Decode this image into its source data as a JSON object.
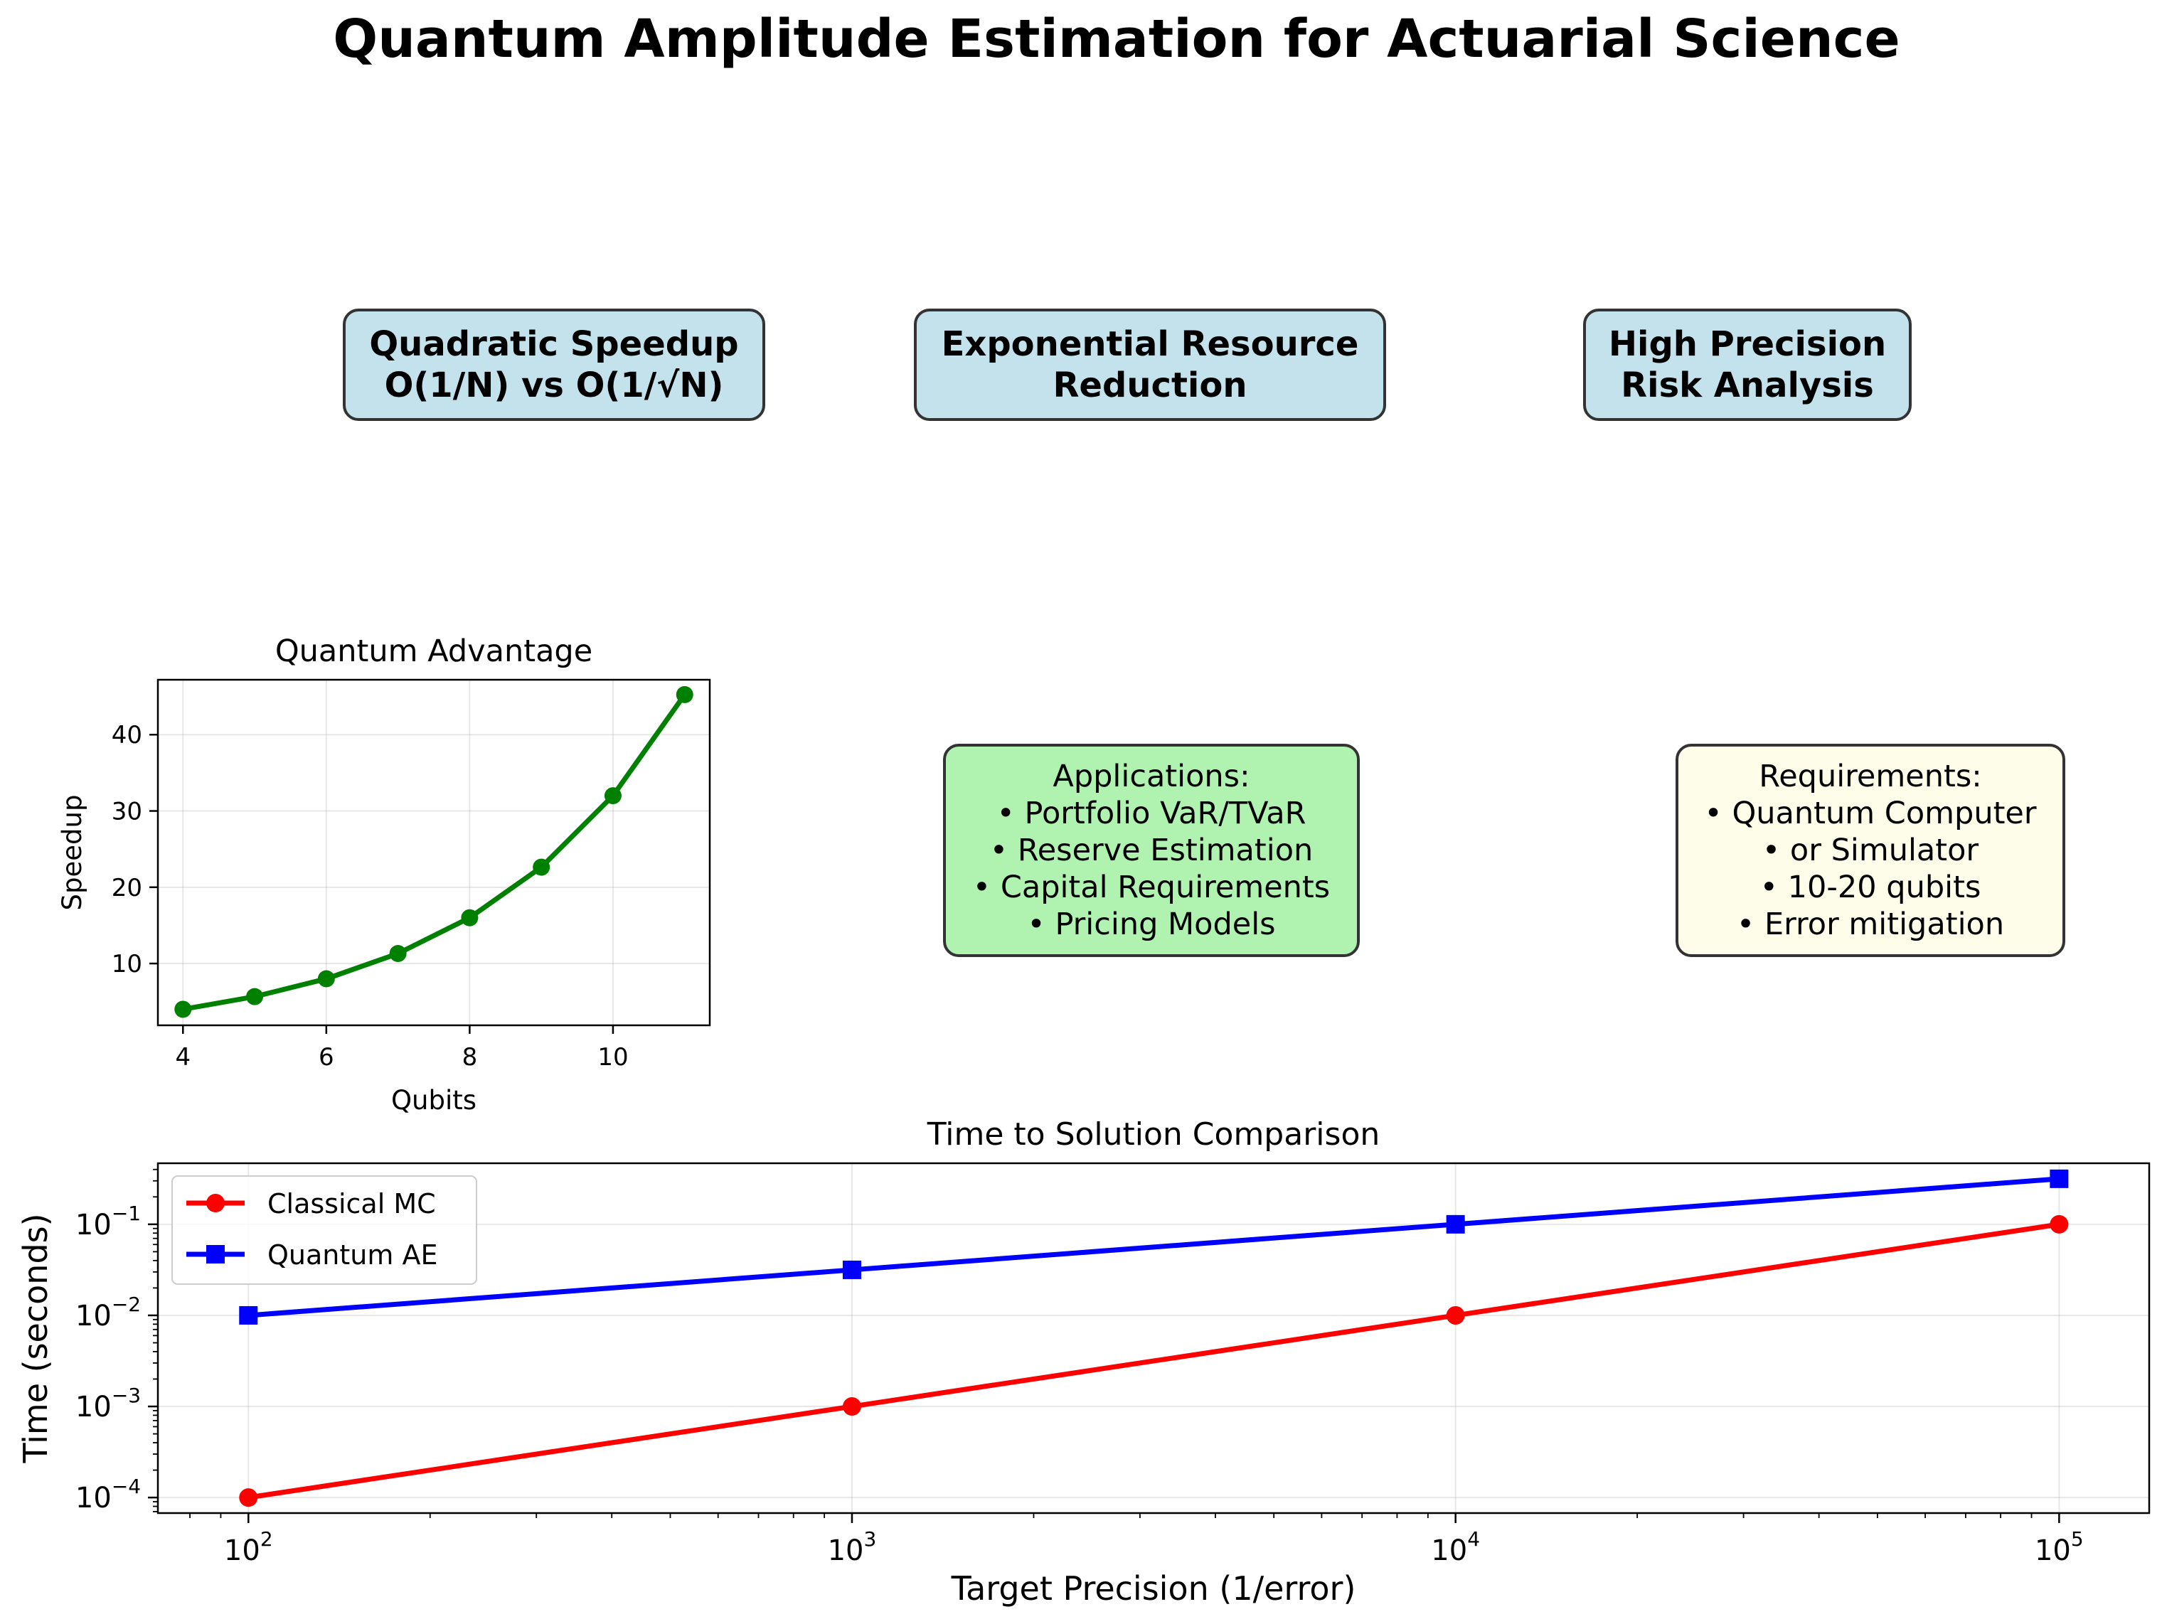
{
  "figure": {
    "title": "Quantum Amplitude Estimation for Actuarial Science"
  },
  "highlights": [
    {
      "lines": [
        "Quadratic Speedup",
        "O(1/N) vs O(1/√N)"
      ],
      "color": "#c4e2eb"
    },
    {
      "lines": [
        "Exponential Resource",
        "Reduction"
      ],
      "color": "#c4e2eb"
    },
    {
      "lines": [
        "High Precision",
        "Risk Analysis"
      ],
      "color": "#c4e2eb"
    }
  ],
  "info_boxes": [
    {
      "lines": [
        "Applications:",
        "• Portfolio VaR/TVaR",
        "• Reserve Estimation",
        "• Capital Requirements",
        "• Pricing Models"
      ],
      "color": "#b0f2b0"
    },
    {
      "lines": [
        "Requirements:",
        "• Quantum Computer",
        "• or Simulator",
        "• 10-20 qubits",
        "• Error mitigation"
      ],
      "color": "#fefde9"
    }
  ],
  "chart_data": [
    {
      "type": "line",
      "title": "Quantum Advantage",
      "xlabel": "Qubits",
      "ylabel": "Speedup",
      "xlim": [
        3.65,
        11.35
      ],
      "ylim": [
        1.9,
        47.2
      ],
      "xticks": [
        4,
        6,
        8,
        10
      ],
      "yticks": [
        10,
        20,
        30,
        40
      ],
      "grid": true,
      "series": [
        {
          "x": [
            4,
            5,
            6,
            7,
            8,
            9,
            10,
            11
          ],
          "y": [
            4.0,
            5.66,
            8.0,
            11.31,
            16.0,
            22.63,
            32.0,
            45.25
          ],
          "color": "#008000",
          "marker": "circle"
        }
      ]
    },
    {
      "type": "line",
      "title": "Time to Solution Comparison",
      "xlabel": "Target Precision (1/error)",
      "ylabel": "Time (seconds)",
      "xscale": "log",
      "yscale": "log",
      "xlim": [
        70.8,
        141000
      ],
      "ylim": [
        6.75e-05,
        0.468
      ],
      "xticks": [
        "10^2",
        "10^3",
        "10^4",
        "10^5"
      ],
      "yticks": [
        "10^-4",
        "10^-3",
        "10^-2",
        "10^-1"
      ],
      "grid": true,
      "legend": "upper-left",
      "series": [
        {
          "name": "Classical MC",
          "x": [
            100,
            1000,
            10000,
            100000
          ],
          "y": [
            0.0001,
            0.001,
            0.01,
            0.1
          ],
          "color": "#ff0000",
          "marker": "circle"
        },
        {
          "name": "Quantum AE",
          "x": [
            100,
            1000,
            10000,
            100000
          ],
          "y": [
            0.01,
            0.0316,
            0.1,
            0.316
          ],
          "color": "#0000ff",
          "marker": "square"
        }
      ]
    }
  ]
}
